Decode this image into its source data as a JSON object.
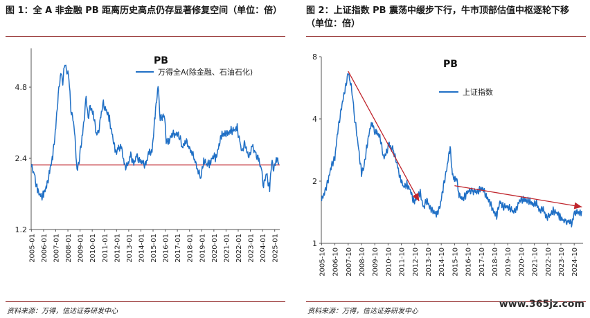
{
  "left": {
    "caption": "图 1：全 A 非金融 PB 距离历史高点仍存显著修复空间（单位：倍）",
    "source": "资料来源：万得，信达证券研发中心",
    "chart_data": {
      "type": "line",
      "title": "PB",
      "yticks": [
        "1.2",
        "2.4",
        "4.8"
      ],
      "ylim": [
        1.2,
        7.0
      ],
      "ylog": true,
      "xticks": [
        "2005-01",
        "2006-01",
        "2007-01",
        "2008-01",
        "2009-01",
        "2010-01",
        "2011-01",
        "2012-01",
        "2013-01",
        "2014-01",
        "2015-01",
        "2016-01",
        "2017-01",
        "2018-01",
        "2019-01",
        "2020-01",
        "2021-01",
        "2022-01",
        "2023-01",
        "2024-01",
        "2025-01"
      ],
      "reference_line": 2.25,
      "series": [
        {
          "name": "万得全A(除金融、石油石化)",
          "color": "#1f6fc5",
          "points": [
            [
              "2005-01",
              2.2
            ],
            [
              "2005-04",
              2.05
            ],
            [
              "2005-07",
              1.75
            ],
            [
              "2005-10",
              1.65
            ],
            [
              "2006-01",
              1.7
            ],
            [
              "2006-04",
              1.8
            ],
            [
              "2006-07",
              2.15
            ],
            [
              "2006-10",
              2.4
            ],
            [
              "2007-01",
              3.3
            ],
            [
              "2007-03",
              4.2
            ],
            [
              "2007-06",
              5.6
            ],
            [
              "2007-08",
              5.1
            ],
            [
              "2007-10",
              6.0
            ],
            [
              "2007-12",
              5.7
            ],
            [
              "2008-02",
              5.2
            ],
            [
              "2008-04",
              3.9
            ],
            [
              "2008-07",
              3.3
            ],
            [
              "2008-10",
              2.2
            ],
            [
              "2008-12",
              2.3
            ],
            [
              "2009-03",
              3.0
            ],
            [
              "2009-05",
              3.5
            ],
            [
              "2009-07",
              4.3
            ],
            [
              "2009-09",
              3.6
            ],
            [
              "2009-11",
              3.9
            ],
            [
              "2010-02",
              3.8
            ],
            [
              "2010-05",
              3.0
            ],
            [
              "2010-07",
              3.1
            ],
            [
              "2010-10",
              3.7
            ],
            [
              "2010-12",
              4.1
            ],
            [
              "2011-03",
              3.8
            ],
            [
              "2011-06",
              3.5
            ],
            [
              "2011-09",
              3.0
            ],
            [
              "2011-12",
              2.5
            ],
            [
              "2012-03",
              2.7
            ],
            [
              "2012-06",
              2.6
            ],
            [
              "2012-09",
              2.25
            ],
            [
              "2012-12",
              2.2
            ],
            [
              "2013-03",
              2.5
            ],
            [
              "2013-06",
              2.25
            ],
            [
              "2013-09",
              2.45
            ],
            [
              "2013-12",
              2.35
            ],
            [
              "2014-03",
              2.25
            ],
            [
              "2014-06",
              2.3
            ],
            [
              "2014-09",
              2.5
            ],
            [
              "2014-12",
              2.6
            ],
            [
              "2015-03",
              3.6
            ],
            [
              "2015-06",
              4.9
            ],
            [
              "2015-08",
              3.6
            ],
            [
              "2015-10",
              3.5
            ],
            [
              "2015-12",
              3.8
            ],
            [
              "2016-02",
              2.8
            ],
            [
              "2016-05",
              2.9
            ],
            [
              "2016-08",
              3.0
            ],
            [
              "2016-11",
              3.1
            ],
            [
              "2017-03",
              2.95
            ],
            [
              "2017-06",
              2.7
            ],
            [
              "2017-09",
              2.85
            ],
            [
              "2017-12",
              2.7
            ],
            [
              "2018-03",
              2.6
            ],
            [
              "2018-06",
              2.35
            ],
            [
              "2018-09",
              2.2
            ],
            [
              "2018-12",
              1.95
            ],
            [
              "2019-03",
              2.4
            ],
            [
              "2019-06",
              2.25
            ],
            [
              "2019-09",
              2.3
            ],
            [
              "2019-12",
              2.45
            ],
            [
              "2020-03",
              2.4
            ],
            [
              "2020-06",
              2.75
            ],
            [
              "2020-09",
              3.0
            ],
            [
              "2020-12",
              3.1
            ],
            [
              "2021-03",
              3.0
            ],
            [
              "2021-06",
              3.2
            ],
            [
              "2021-09",
              3.1
            ],
            [
              "2021-12",
              3.25
            ],
            [
              "2022-03",
              2.75
            ],
            [
              "2022-05",
              2.5
            ],
            [
              "2022-07",
              2.85
            ],
            [
              "2022-10",
              2.45
            ],
            [
              "2022-12",
              2.5
            ],
            [
              "2023-03",
              2.65
            ],
            [
              "2023-06",
              2.55
            ],
            [
              "2023-09",
              2.35
            ],
            [
              "2023-12",
              2.15
            ],
            [
              "2024-02",
              1.85
            ],
            [
              "2024-05",
              2.05
            ],
            [
              "2024-08",
              1.8
            ],
            [
              "2024-10",
              2.3
            ],
            [
              "2024-12",
              2.2
            ],
            [
              "2025-03",
              2.35
            ],
            [
              "2025-05",
              2.3
            ]
          ]
        }
      ]
    }
  },
  "right": {
    "caption": "图 2：上证指数 PB 震荡中缓步下行，牛市顶部估值中枢逐轮下移（单位：倍）",
    "source": "资料来源：万得，信达证券研发中心",
    "watermark": "www.365jz.com",
    "chart_data": {
      "type": "line",
      "title": "PB",
      "yticks": [
        "1",
        "2",
        "4",
        "8"
      ],
      "ylim": [
        1,
        8
      ],
      "ylog": true,
      "xticks": [
        "2005-10",
        "2006-10",
        "2007-10",
        "2008-10",
        "2009-10",
        "2010-10",
        "2011-10",
        "2012-10",
        "2013-10",
        "2014-10",
        "2015-10",
        "2016-10",
        "2017-10",
        "2018-10",
        "2019-10",
        "2020-10",
        "2021-10",
        "2022-10",
        "2023-10",
        "2024-10"
      ],
      "trend_lines": [
        {
          "from": [
            "2007-10",
            6.8
          ],
          "to": [
            "2013-02",
            1.6
          ]
        },
        {
          "from": [
            "2015-10",
            1.9
          ],
          "to": [
            "2025-05",
            1.5
          ]
        }
      ],
      "series": [
        {
          "name": "上证指数",
          "color": "#1f6fc5",
          "points": [
            [
              "2005-10",
              1.6
            ],
            [
              "2006-01",
              1.8
            ],
            [
              "2006-04",
              2.0
            ],
            [
              "2006-07",
              2.4
            ],
            [
              "2006-10",
              2.6
            ],
            [
              "2007-01",
              3.6
            ],
            [
              "2007-04",
              4.6
            ],
            [
              "2007-07",
              5.4
            ],
            [
              "2007-10",
              6.8
            ],
            [
              "2007-12",
              6.0
            ],
            [
              "2008-02",
              5.2
            ],
            [
              "2008-04",
              4.0
            ],
            [
              "2008-07",
              3.0
            ],
            [
              "2008-10",
              2.2
            ],
            [
              "2008-12",
              2.3
            ],
            [
              "2009-03",
              3.0
            ],
            [
              "2009-06",
              3.6
            ],
            [
              "2009-08",
              3.9
            ],
            [
              "2009-10",
              3.4
            ],
            [
              "2009-12",
              3.5
            ],
            [
              "2010-03",
              3.2
            ],
            [
              "2010-06",
              2.6
            ],
            [
              "2010-09",
              2.8
            ],
            [
              "2010-11",
              3.0
            ],
            [
              "2011-03",
              2.8
            ],
            [
              "2011-06",
              2.4
            ],
            [
              "2011-09",
              2.1
            ],
            [
              "2011-12",
              1.85
            ],
            [
              "2012-03",
              1.95
            ],
            [
              "2012-06",
              1.8
            ],
            [
              "2012-09",
              1.6
            ],
            [
              "2012-12",
              1.65
            ],
            [
              "2013-03",
              1.75
            ],
            [
              "2013-06",
              1.5
            ],
            [
              "2013-09",
              1.6
            ],
            [
              "2013-12",
              1.5
            ],
            [
              "2014-03",
              1.4
            ],
            [
              "2014-06",
              1.4
            ],
            [
              "2014-09",
              1.5
            ],
            [
              "2014-12",
              1.9
            ],
            [
              "2015-03",
              2.3
            ],
            [
              "2015-06",
              2.9
            ],
            [
              "2015-08",
              2.2
            ],
            [
              "2015-10",
              2.0
            ],
            [
              "2015-12",
              2.1
            ],
            [
              "2016-02",
              1.7
            ],
            [
              "2016-05",
              1.65
            ],
            [
              "2016-08",
              1.7
            ],
            [
              "2016-11",
              1.8
            ],
            [
              "2017-03",
              1.8
            ],
            [
              "2017-06",
              1.75
            ],
            [
              "2017-09",
              1.85
            ],
            [
              "2017-12",
              1.8
            ],
            [
              "2018-03",
              1.7
            ],
            [
              "2018-06",
              1.55
            ],
            [
              "2018-09",
              1.45
            ],
            [
              "2018-12",
              1.35
            ],
            [
              "2019-03",
              1.6
            ],
            [
              "2019-06",
              1.5
            ],
            [
              "2019-09",
              1.5
            ],
            [
              "2019-12",
              1.5
            ],
            [
              "2020-03",
              1.4
            ],
            [
              "2020-06",
              1.5
            ],
            [
              "2020-09",
              1.6
            ],
            [
              "2020-12",
              1.65
            ],
            [
              "2021-03",
              1.6
            ],
            [
              "2021-06",
              1.6
            ],
            [
              "2021-09",
              1.55
            ],
            [
              "2021-12",
              1.55
            ],
            [
              "2022-03",
              1.45
            ],
            [
              "2022-06",
              1.45
            ],
            [
              "2022-09",
              1.35
            ],
            [
              "2022-12",
              1.35
            ],
            [
              "2023-03",
              1.45
            ],
            [
              "2023-06",
              1.4
            ],
            [
              "2023-09",
              1.35
            ],
            [
              "2023-12",
              1.3
            ],
            [
              "2024-02",
              1.25
            ],
            [
              "2024-05",
              1.3
            ],
            [
              "2024-08",
              1.22
            ],
            [
              "2024-10",
              1.42
            ],
            [
              "2024-12",
              1.4
            ],
            [
              "2025-03",
              1.42
            ],
            [
              "2025-05",
              1.42
            ]
          ]
        }
      ]
    }
  }
}
